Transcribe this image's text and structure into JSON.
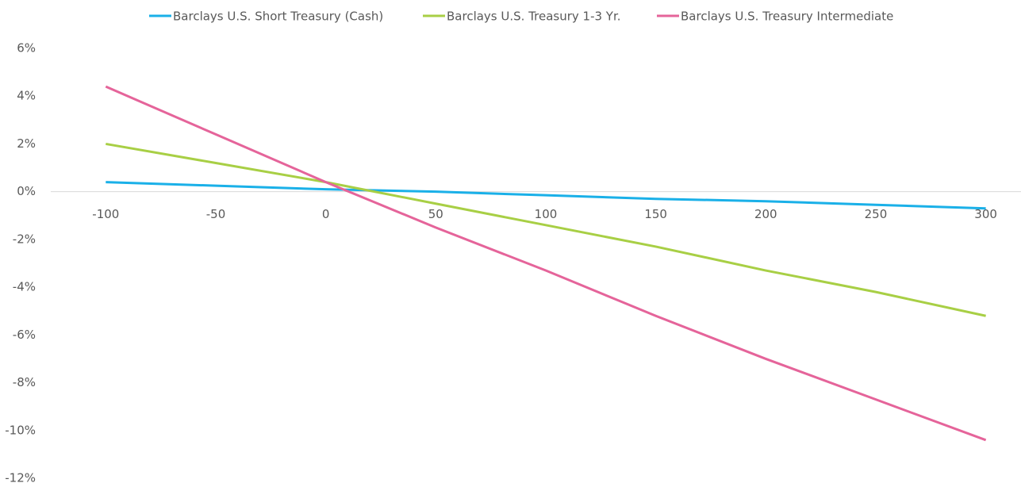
{
  "chart_data": {
    "type": "line",
    "x": [
      -100,
      -50,
      0,
      50,
      100,
      150,
      200,
      250,
      300
    ],
    "xlim": [
      -125,
      316
    ],
    "xticks": [
      -100,
      -50,
      0,
      50,
      100,
      150,
      200,
      250,
      300
    ],
    "ylim": [
      -12,
      6
    ],
    "yticks": [
      {
        "value": 6,
        "label": "6%"
      },
      {
        "value": 4,
        "label": "4%"
      },
      {
        "value": 2,
        "label": "2%"
      },
      {
        "value": 0,
        "label": "0%"
      },
      {
        "value": -2,
        "label": "-2%"
      },
      {
        "value": -4,
        "label": "-4%"
      },
      {
        "value": -6,
        "label": "-6%"
      },
      {
        "value": -8,
        "label": "-8%"
      },
      {
        "value": -10,
        "label": "-10%"
      },
      {
        "value": -12,
        "label": "-12%"
      }
    ],
    "legend": "top",
    "series": [
      {
        "name": "Barclays U.S. Short Treasury (Cash)",
        "color": "#1ab0e8",
        "values": [
          0.4,
          0.25,
          0.1,
          0.0,
          -0.15,
          -0.3,
          -0.4,
          -0.55,
          -0.7
        ]
      },
      {
        "name": "Barclays U.S. Treasury 1-3 Yr.",
        "color": "#a8cf45",
        "values": [
          2.0,
          1.2,
          0.4,
          -0.5,
          -1.4,
          -2.3,
          -3.3,
          -4.2,
          -5.2
        ]
      },
      {
        "name": "Barclays U.S. Treasury Intermediate",
        "color": "#e5649a",
        "values": [
          4.4,
          2.4,
          0.4,
          -1.5,
          -3.3,
          -5.2,
          -7.0,
          -8.7,
          -10.4
        ]
      }
    ]
  }
}
